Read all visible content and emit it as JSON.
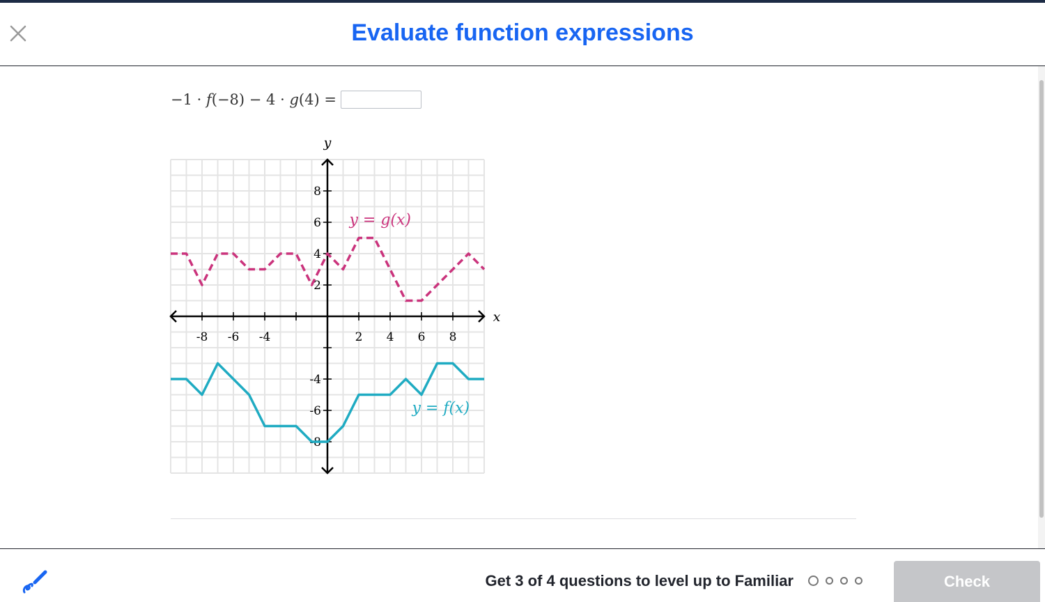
{
  "header": {
    "title": "Evaluate function expressions",
    "close_icon": "close-icon"
  },
  "problem": {
    "expression_parts": [
      "−1 · ",
      "f",
      "(−8) − 4 · ",
      "g",
      "(4) ="
    ],
    "answer_value": "",
    "answer_placeholder": ""
  },
  "chart_data": [
    {
      "type": "line",
      "title": "",
      "xlabel": "x",
      "ylabel": "y",
      "xlim": [
        -10,
        10
      ],
      "ylim": [
        -10,
        10
      ],
      "grid": true,
      "x_tick_labels": [
        "-8",
        "-6",
        "-4",
        "2",
        "4",
        "6",
        "8"
      ],
      "y_tick_labels": [
        "8",
        "6",
        "4",
        "2",
        "-4",
        "-6",
        "-8"
      ],
      "series": [
        {
          "name": "y = g(x)",
          "style": "dashed",
          "color": "#ca337c",
          "x": [
            -10,
            -9,
            -8,
            -7,
            -6,
            -5,
            -4,
            -3,
            -2,
            -1,
            0,
            1,
            2,
            3,
            4,
            5,
            6,
            7,
            8,
            9,
            10
          ],
          "y": [
            4,
            4,
            2,
            4,
            4,
            3,
            3,
            4,
            4,
            2,
            4,
            3,
            5,
            5,
            3,
            1,
            1,
            2,
            3,
            4,
            3
          ]
        },
        {
          "name": "y = f(x)",
          "style": "solid",
          "color": "#1fabc2",
          "x": [
            -10,
            -9,
            -8,
            -7,
            -6,
            -5,
            -4,
            -3,
            -2,
            -1,
            0,
            1,
            2,
            3,
            4,
            5,
            6,
            7,
            8,
            9,
            10
          ],
          "y": [
            -4,
            -4,
            -5,
            -3,
            -4,
            -5,
            -7,
            -7,
            -7,
            -8,
            -8,
            -7,
            -5,
            -5,
            -5,
            -4,
            -5,
            -3,
            -3,
            -4,
            -4
          ]
        }
      ]
    }
  ],
  "footer": {
    "scratchpad_icon": "pencil-icon",
    "progress_text": "Get 3 of 4 questions to level up to Familiar",
    "progress_total": 4,
    "progress_completed": 0,
    "check_label": "Check",
    "check_enabled": false
  },
  "colors": {
    "accent": "#1865f2",
    "g_series": "#ca337c",
    "f_series": "#1fabc2",
    "check_disabled": "#c5c6c9"
  }
}
